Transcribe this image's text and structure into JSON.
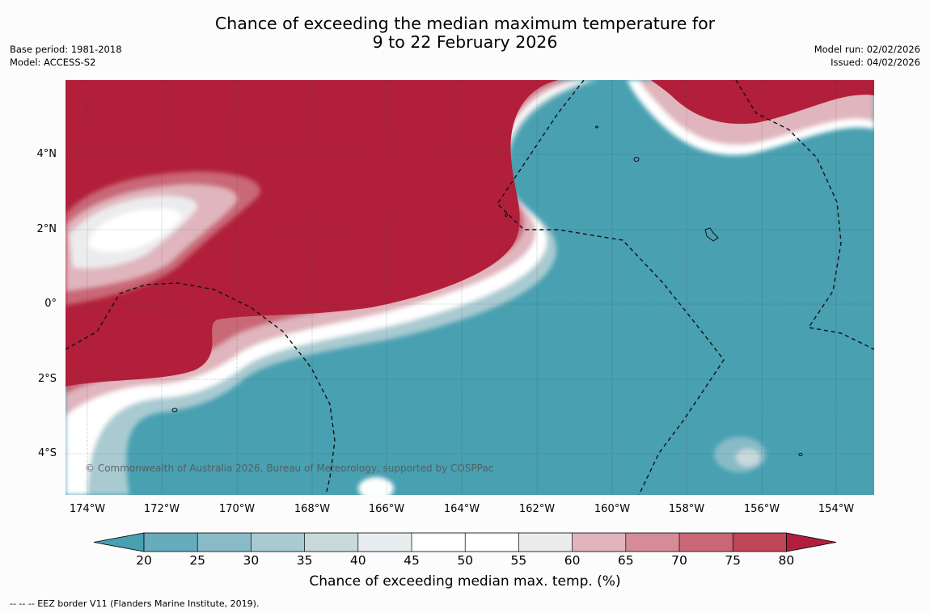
{
  "header": {
    "title_line1": "Chance of exceeding the median maximum temperature for",
    "title_line2": "9 to 22 February 2026",
    "base_period": "Base period: 1981-2018",
    "model": "Model: ACCESS-S2",
    "model_run": "Model run: 02/02/2026",
    "issued": "Issued: 04/02/2026"
  },
  "map": {
    "lat_labels": [
      "4°N",
      "2°N",
      "0°",
      "2°S",
      "4°S"
    ],
    "lon_labels": [
      "174°W",
      "172°W",
      "170°W",
      "168°W",
      "166°W",
      "164°W",
      "162°W",
      "160°W",
      "158°W",
      "156°W",
      "154°W"
    ],
    "lon_range": [
      -174.6,
      -153.0
    ],
    "lat_range": [
      -5.2,
      5.8
    ],
    "copyright": "© Commonwealth of Australia 2026, Bureau of Meteorology, supported by COSPPac"
  },
  "colorbar": {
    "ticks": [
      "20",
      "25",
      "30",
      "35",
      "40",
      "45",
      "50",
      "55",
      "60",
      "65",
      "70",
      "75",
      "80"
    ],
    "colors": [
      "#48a0b1",
      "#66acbc",
      "#88bbc7",
      "#a9cad1",
      "#c8d9dc",
      "#e8eeef",
      "#ffffff",
      "#ffffff",
      "#ececee",
      "#e0b5bd",
      "#d68b98",
      "#c96777",
      "#bf4557",
      "#b21f3a"
    ],
    "label": "Chance of exceeding median max. temp. (%)"
  },
  "footnote": "--  --  -- EEZ border V11 (Flanders Marine Institute, 2019)."
}
